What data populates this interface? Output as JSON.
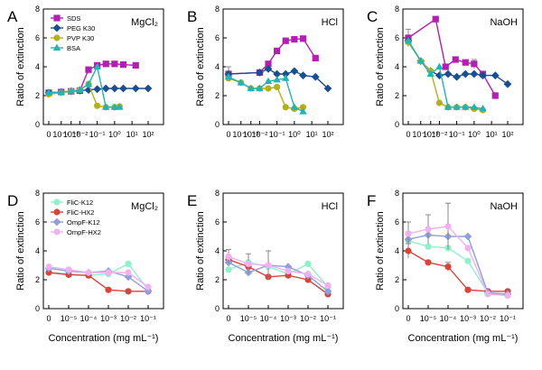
{
  "colors": {
    "SDS": "#b21fb2",
    "PEG K30": "#1a4f8f",
    "PVP K30": "#b3b01a",
    "BSA": "#22b3b3",
    "FliC-K12": "#8ff0c9",
    "FliC-HX2": "#d9443a",
    "OmpF-K12": "#8fa0dc",
    "OmpF-HX2": "#f2b0f0",
    "errorbar": "#888888"
  },
  "chart_data": [
    {
      "panel": "A",
      "condition": "MgCl₂",
      "type": "line",
      "ylabel": "Ratio of extinction",
      "xlabel": "",
      "categories": [
        "0",
        "10⁻⁴",
        "10⁻³",
        "10⁻²",
        "10⁻¹",
        "10⁰",
        "10¹",
        "10²"
      ],
      "ylim": [
        0,
        8
      ],
      "yticks": [
        0,
        2,
        4,
        6,
        8
      ],
      "legend_position": "top-left",
      "series": [
        {
          "name": "SDS",
          "marker": "square",
          "points": [
            [
              0,
              2.2
            ],
            [
              1,
              2.25
            ],
            [
              1.8,
              2.3
            ],
            [
              2.5,
              2.35
            ],
            [
              3.2,
              3.8
            ],
            [
              3.9,
              4.1
            ],
            [
              4.6,
              4.2
            ],
            [
              5.3,
              4.2
            ],
            [
              6.0,
              4.15
            ],
            [
              7.0,
              4.1
            ]
          ]
        },
        {
          "name": "PEG K30",
          "marker": "diamond",
          "points": [
            [
              0,
              2.2
            ],
            [
              1,
              2.25
            ],
            [
              1.8,
              2.3
            ],
            [
              2.5,
              2.35
            ],
            [
              3.2,
              2.4
            ],
            [
              3.9,
              2.45
            ],
            [
              4.6,
              2.5
            ],
            [
              5.3,
              2.5
            ],
            [
              6.0,
              2.5
            ],
            [
              7.0,
              2.5
            ],
            [
              8.0,
              2.5
            ]
          ]
        },
        {
          "name": "PVP K30",
          "marker": "circle",
          "points": [
            [
              0,
              2.1
            ],
            [
              1,
              2.2
            ],
            [
              1.8,
              2.3
            ],
            [
              2.5,
              2.4
            ],
            [
              3.2,
              2.8
            ],
            [
              3.9,
              1.3
            ],
            [
              4.6,
              1.2
            ],
            [
              5.3,
              1.2
            ],
            [
              5.7,
              1.25
            ]
          ]
        },
        {
          "name": "BSA",
          "marker": "triangle",
          "points": [
            [
              0,
              2.2
            ],
            [
              1,
              2.25
            ],
            [
              1.8,
              2.3
            ],
            [
              2.5,
              2.4
            ],
            [
              3.2,
              2.8
            ],
            [
              3.9,
              4.0
            ],
            [
              4.6,
              1.2
            ],
            [
              5.3,
              1.2
            ],
            [
              5.7,
              1.2
            ]
          ]
        }
      ]
    },
    {
      "panel": "B",
      "condition": "HCl",
      "type": "line",
      "ylabel": "Ratio of extinction",
      "xlabel": "",
      "categories": [
        "0",
        "10⁻⁴",
        "10⁻³",
        "10⁻²",
        "10⁻¹",
        "10⁰",
        "10¹",
        "10²"
      ],
      "ylim": [
        0,
        8
      ],
      "yticks": [
        0,
        2,
        4,
        6,
        8
      ],
      "series": [
        {
          "name": "SDS",
          "marker": "square",
          "points": [
            [
              0,
              3.5
            ],
            [
              2.5,
              3.6
            ],
            [
              3.2,
              4.2
            ],
            [
              3.9,
              5.1
            ],
            [
              4.6,
              5.8
            ],
            [
              5.3,
              5.9
            ],
            [
              6.0,
              5.95
            ],
            [
              7.0,
              4.6
            ]
          ],
          "err": [
            0.5,
            0,
            0,
            0,
            0,
            0,
            0,
            0
          ]
        },
        {
          "name": "PEG K30",
          "marker": "diamond",
          "points": [
            [
              0,
              3.5
            ],
            [
              2.5,
              3.6
            ],
            [
              3.2,
              3.85
            ],
            [
              3.9,
              3.5
            ],
            [
              4.6,
              3.5
            ],
            [
              5.3,
              3.7
            ],
            [
              6.0,
              3.4
            ],
            [
              7.0,
              3.3
            ],
            [
              8.0,
              2.5
            ]
          ]
        },
        {
          "name": "PVP K30",
          "marker": "circle",
          "points": [
            [
              0,
              3.2
            ],
            [
              1,
              2.9
            ],
            [
              1.8,
              2.5
            ],
            [
              2.5,
              2.5
            ],
            [
              3.2,
              2.5
            ],
            [
              3.9,
              2.6
            ],
            [
              4.6,
              1.2
            ],
            [
              5.3,
              1.1
            ],
            [
              6.0,
              1.2
            ]
          ]
        },
        {
          "name": "BSA",
          "marker": "triangle",
          "points": [
            [
              0,
              3.3
            ],
            [
              1,
              2.9
            ],
            [
              1.8,
              2.5
            ],
            [
              2.5,
              2.5
            ],
            [
              3.2,
              3.0
            ],
            [
              3.9,
              3.1
            ],
            [
              4.6,
              3.2
            ],
            [
              5.3,
              1.2
            ],
            [
              6.0,
              0.9
            ]
          ]
        }
      ]
    },
    {
      "panel": "C",
      "condition": "NaOH",
      "type": "line",
      "ylabel": "Ratio of extinction",
      "xlabel": "",
      "categories": [
        "0",
        "10⁻⁴",
        "10⁻³",
        "10⁻²",
        "10⁻¹",
        "10⁰",
        "10¹",
        "10²"
      ],
      "ylim": [
        0,
        8
      ],
      "yticks": [
        0,
        2,
        4,
        6,
        8
      ],
      "series": [
        {
          "name": "SDS",
          "marker": "square",
          "points": [
            [
              0,
              6.0
            ],
            [
              2.2,
              7.3
            ],
            [
              3.0,
              4.0
            ],
            [
              3.8,
              4.5
            ],
            [
              4.6,
              4.3
            ],
            [
              5.3,
              4.2
            ],
            [
              6.0,
              3.5
            ],
            [
              7.0,
              2.0
            ]
          ],
          "err": [
            0.6,
            0,
            0,
            0,
            0,
            0.3,
            0,
            0.2
          ]
        },
        {
          "name": "PEG K30",
          "marker": "diamond",
          "points": [
            [
              0,
              5.8
            ],
            [
              1,
              4.4
            ],
            [
              1.8,
              3.7
            ],
            [
              2.5,
              3.4
            ],
            [
              3.2,
              3.5
            ],
            [
              3.9,
              3.3
            ],
            [
              4.6,
              3.5
            ],
            [
              5.3,
              3.5
            ],
            [
              6.0,
              3.4
            ],
            [
              7.0,
              3.4
            ],
            [
              8.0,
              2.8
            ]
          ]
        },
        {
          "name": "PVP K30",
          "marker": "circle",
          "points": [
            [
              0,
              5.7
            ],
            [
              1,
              4.4
            ],
            [
              1.8,
              3.7
            ],
            [
              2.5,
              1.5
            ],
            [
              3.2,
              1.2
            ],
            [
              3.9,
              1.2
            ],
            [
              4.6,
              1.2
            ],
            [
              5.3,
              1.1
            ],
            [
              6.0,
              1.0
            ]
          ]
        },
        {
          "name": "BSA",
          "marker": "triangle",
          "points": [
            [
              0,
              5.8
            ],
            [
              1,
              4.4
            ],
            [
              1.8,
              3.5
            ],
            [
              2.5,
              4.0
            ],
            [
              3.2,
              1.2
            ],
            [
              3.9,
              1.2
            ],
            [
              4.6,
              1.2
            ],
            [
              5.3,
              1.2
            ],
            [
              6.0,
              1.1
            ]
          ]
        }
      ]
    },
    {
      "panel": "D",
      "condition": "MgCl₂",
      "type": "line",
      "ylabel": "Ratio of extinction",
      "xlabel": "Concentration (mg mL⁻¹)",
      "categories": [
        "0",
        "10⁻⁵",
        "10⁻⁴",
        "10⁻³",
        "10⁻²",
        "10⁻¹"
      ],
      "ylim": [
        0,
        8
      ],
      "yticks": [
        0,
        2,
        4,
        6,
        8
      ],
      "legend_position": "top-left",
      "series": [
        {
          "name": "FliC-K12",
          "marker": "circle",
          "points": [
            [
              0,
              2.5
            ],
            [
              1,
              2.4
            ],
            [
              2,
              2.3
            ],
            [
              3,
              2.4
            ],
            [
              4,
              3.1
            ],
            [
              5,
              1.3
            ]
          ]
        },
        {
          "name": "FliC-HX2",
          "marker": "circle",
          "points": [
            [
              0,
              2.5
            ],
            [
              1,
              2.35
            ],
            [
              2,
              2.3
            ],
            [
              3,
              1.3
            ],
            [
              4,
              1.2
            ],
            [
              5,
              1.2
            ]
          ]
        },
        {
          "name": "OmpF-K12",
          "marker": "diamond",
          "points": [
            [
              0,
              2.8
            ],
            [
              1,
              2.6
            ],
            [
              2,
              2.5
            ],
            [
              3,
              2.6
            ],
            [
              4,
              2.2
            ],
            [
              5,
              1.2
            ]
          ]
        },
        {
          "name": "OmpF-HX2",
          "marker": "circle",
          "points": [
            [
              0,
              2.9
            ],
            [
              1,
              2.7
            ],
            [
              2,
              2.5
            ],
            [
              3,
              2.5
            ],
            [
              4,
              2.5
            ],
            [
              5,
              1.5
            ]
          ]
        }
      ]
    },
    {
      "panel": "E",
      "condition": "HCl",
      "type": "line",
      "ylabel": "Ratio of extinction",
      "xlabel": "Concentration (mg mL⁻¹)",
      "categories": [
        "0",
        "10⁻⁵",
        "10⁻⁴",
        "10⁻³",
        "10⁻²",
        "10⁻¹"
      ],
      "ylim": [
        0,
        8
      ],
      "yticks": [
        0,
        2,
        4,
        6,
        8
      ],
      "series": [
        {
          "name": "FliC-K12",
          "marker": "circle",
          "points": [
            [
              0,
              2.7
            ],
            [
              1,
              3.2
            ],
            [
              2,
              2.9
            ],
            [
              3,
              2.4
            ],
            [
              4,
              3.1
            ],
            [
              5,
              1.5
            ]
          ]
        },
        {
          "name": "FliC-HX2",
          "marker": "circle",
          "points": [
            [
              0,
              3.4
            ],
            [
              1,
              2.9
            ],
            [
              2,
              2.2
            ],
            [
              3,
              2.3
            ],
            [
              4,
              2.0
            ],
            [
              5,
              1.0
            ]
          ]
        },
        {
          "name": "OmpF-K12",
          "marker": "diamond",
          "points": [
            [
              0,
              3.2
            ],
            [
              1,
              2.5
            ],
            [
              2,
              3.0
            ],
            [
              3,
              2.9
            ],
            [
              4,
              2.3
            ],
            [
              5,
              1.2
            ]
          ]
        },
        {
          "name": "OmpF-HX2",
          "marker": "circle",
          "points": [
            [
              0,
              3.6
            ],
            [
              1,
              3.1
            ],
            [
              2,
              3.0
            ],
            [
              3,
              2.6
            ],
            [
              4,
              2.4
            ],
            [
              5,
              1.6
            ]
          ],
          "err": [
            0.5,
            0.7,
            1.0,
            0,
            0,
            0
          ]
        }
      ]
    },
    {
      "panel": "F",
      "condition": "NaOH",
      "type": "line",
      "ylabel": "Ratio of extinction",
      "xlabel": "Concentration (mg mL⁻¹)",
      "categories": [
        "0",
        "10⁻⁵",
        "10⁻⁴",
        "10⁻³",
        "10⁻²",
        "10⁻¹"
      ],
      "ylim": [
        0,
        8
      ],
      "yticks": [
        0,
        2,
        4,
        6,
        8
      ],
      "series": [
        {
          "name": "FliC-K12",
          "marker": "circle",
          "points": [
            [
              0,
              4.7
            ],
            [
              1,
              4.3
            ],
            [
              2,
              4.2
            ],
            [
              3,
              3.3
            ],
            [
              4,
              1.1
            ],
            [
              5,
              1.0
            ]
          ]
        },
        {
          "name": "FliC-HX2",
          "marker": "circle",
          "points": [
            [
              0,
              4.0
            ],
            [
              1,
              3.2
            ],
            [
              2,
              2.9
            ],
            [
              3,
              1.3
            ],
            [
              4,
              1.2
            ],
            [
              5,
              1.2
            ]
          ],
          "err": [
            0.5,
            0,
            0.3,
            0,
            0,
            0
          ]
        },
        {
          "name": "OmpF-K12",
          "marker": "diamond",
          "points": [
            [
              0,
              4.8
            ],
            [
              1,
              5.1
            ],
            [
              2,
              5.0
            ],
            [
              3,
              5.0
            ],
            [
              4,
              1.1
            ],
            [
              5,
              1.0
            ]
          ]
        },
        {
          "name": "OmpF-HX2",
          "marker": "circle",
          "points": [
            [
              0,
              5.2
            ],
            [
              1,
              5.5
            ],
            [
              2,
              5.7
            ],
            [
              3,
              4.2
            ],
            [
              4,
              1.0
            ],
            [
              5,
              0.9
            ]
          ],
          "err": [
            0.8,
            1.0,
            1.6,
            0,
            0,
            0
          ]
        }
      ]
    }
  ]
}
